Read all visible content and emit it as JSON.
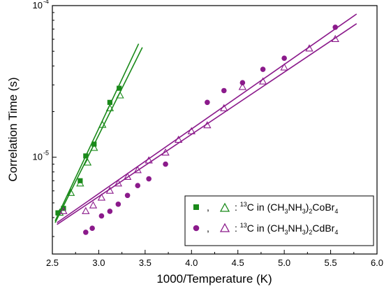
{
  "chart_data": {
    "type": "scatter",
    "xlabel": "1000/Temperature (K)",
    "ylabel": "Correlation Time (s)",
    "xlim": [
      2.5,
      6.0
    ],
    "ylim": [
      2.3e-06,
      0.0001
    ],
    "yscale": "log",
    "grid": false,
    "legend_position": "bottom-right",
    "x_ticks": [
      2.5,
      3.0,
      3.5,
      4.0,
      4.5,
      5.0,
      5.5,
      6.0
    ],
    "x_tick_labels": [
      "2.5",
      "3.0",
      "3.5",
      "4.0",
      "4.5",
      "5.0",
      "5.5",
      "6.0"
    ],
    "y_ticks": [
      {
        "value": 1e-05,
        "base": "10",
        "exp": "-5"
      },
      {
        "value": 0.0001,
        "base": "10",
        "exp": "-4"
      }
    ],
    "series": [
      {
        "color": "#1a8a1a",
        "marker": "filled-square",
        "x": [
          2.56,
          2.62,
          2.8,
          2.86,
          2.95,
          3.12,
          3.22
        ],
        "y": [
          4.3e-06,
          4.6e-06,
          7e-06,
          1.02e-05,
          1.22e-05,
          2.3e-05,
          2.85e-05
        ],
        "fit_line": {
          "x": [
            2.53,
            3.43
          ],
          "y": [
            3.8e-06,
            5.6e-05
          ]
        }
      },
      {
        "color": "#1a8a1a",
        "marker": "open-triangle",
        "x": [
          2.58,
          2.7,
          2.8,
          2.88,
          2.95,
          3.04,
          3.12,
          3.23
        ],
        "y": [
          4.3e-06,
          5.8e-06,
          6.7e-06,
          9.2e-06,
          1.15e-05,
          1.63e-05,
          2.1e-05,
          2.55e-05
        ],
        "fit_line": {
          "x": [
            2.53,
            3.47
          ],
          "y": [
            3.7e-06,
            5.3e-05
          ]
        }
      },
      {
        "color": "#8b1a8b",
        "marker": "filled-circle",
        "x": [
          2.86,
          2.93,
          3.03,
          3.12,
          3.21,
          3.31,
          3.42,
          3.54,
          3.72,
          4.17,
          4.35,
          4.55,
          4.77,
          5.0,
          5.55
        ],
        "y": [
          3.2e-06,
          3.4e-06,
          4.1e-06,
          4.4e-06,
          4.9e-06,
          5.6e-06,
          6.5e-06,
          7.2e-06,
          9e-06,
          2.3e-05,
          2.75e-05,
          3.1e-05,
          3.8e-05,
          4.5e-05,
          7.2e-05
        ],
        "fit_line": {
          "x": [
            2.55,
            5.78
          ],
          "y": [
            3.7e-06,
            8.8e-05
          ]
        }
      },
      {
        "color": "#8b1a8b",
        "marker": "open-triangle",
        "x": [
          2.62,
          2.86,
          2.94,
          3.03,
          3.12,
          3.21,
          3.31,
          3.42,
          3.54,
          3.72,
          3.86,
          4.0,
          4.17,
          4.35,
          4.55,
          4.77,
          5.0,
          5.27,
          5.55
        ],
        "y": [
          4.4e-06,
          4.4e-06,
          4.8e-06,
          5.4e-06,
          6e-06,
          6.7e-06,
          7.4e-06,
          8.2e-06,
          9.5e-06,
          1.07e-05,
          1.3e-05,
          1.48e-05,
          1.62e-05,
          2.1e-05,
          2.9e-05,
          3.15e-05,
          3.9e-05,
          5.2e-05,
          6e-05
        ],
        "fit_line": {
          "x": [
            2.55,
            5.78
          ],
          "y": [
            3.6e-06,
            7.6e-05
          ]
        }
      }
    ],
    "legend": [
      {
        "markers": [
          "filled-square",
          "open-triangle"
        ],
        "color": "#1a8a1a",
        "comma": ",",
        "lead": ": ",
        "iso": "13",
        "text_a": "C in (CH",
        "sub_1": "3",
        "text_b": "NH",
        "sub_2": "3",
        "text_c": ")",
        "sub_3": "2",
        "text_d": "CoBr",
        "sub_4": "4"
      },
      {
        "markers": [
          "filled-circle",
          "open-triangle"
        ],
        "color": "#8b1a8b",
        "comma": ",",
        "lead": ": ",
        "iso": "13",
        "text_a": "C in (CH",
        "sub_1": "3",
        "text_b": "NH",
        "sub_2": "3",
        "text_c": ")",
        "sub_3": "2",
        "text_d": "CdBr",
        "sub_4": "4"
      }
    ]
  }
}
